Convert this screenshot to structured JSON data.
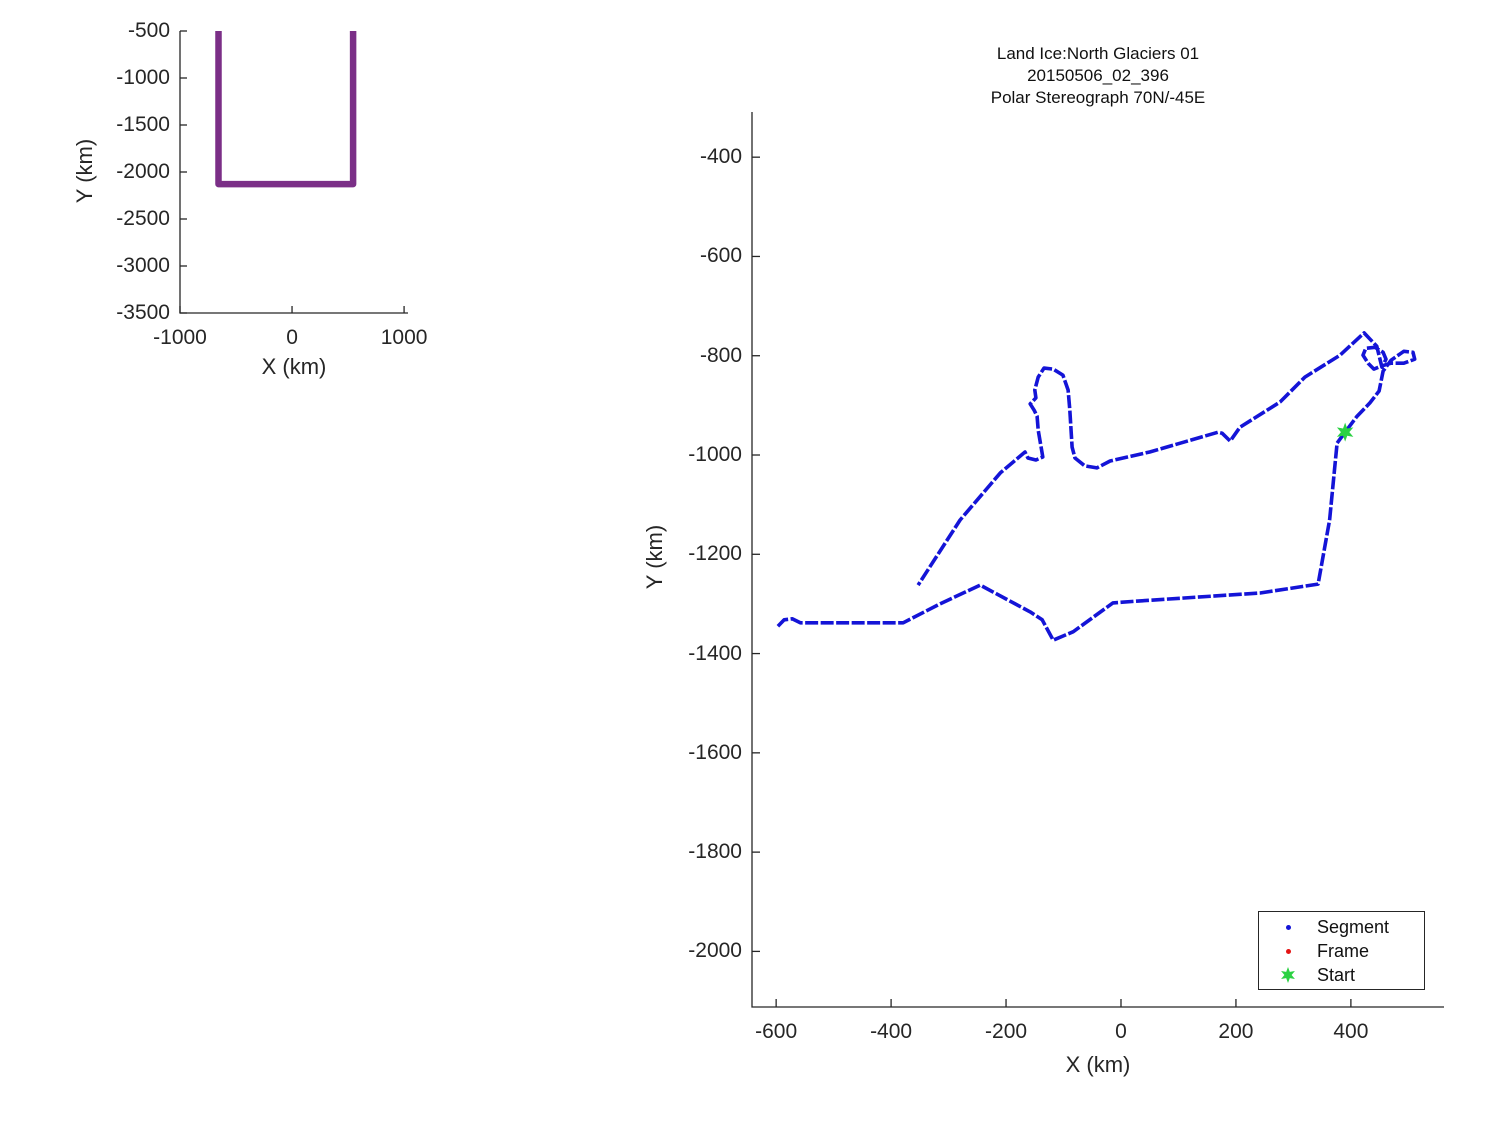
{
  "figure": {
    "background": "#ffffff"
  },
  "colors": {
    "axis": "#262626",
    "overview_track": "#7b2f87",
    "segment_blue": "#1414d7",
    "frame_red": "#e41414",
    "start_green": "#2bd143"
  },
  "chart_data": [
    {
      "name": "overview",
      "type": "line",
      "title": "",
      "xlabel": "X (km)",
      "ylabel": "Y (km)",
      "xlim": [
        -1000,
        1035
      ],
      "ylim": [
        -3500,
        -500
      ],
      "xticks": [
        -1000,
        0,
        1000
      ],
      "yticks": [
        -500,
        -1000,
        -1500,
        -2000,
        -2500,
        -3000,
        -3500
      ],
      "grid": false,
      "track_color": "#7b2f87",
      "track": [
        [
          -656,
          -500
        ],
        [
          -656,
          -2129
        ],
        [
          545,
          -2129
        ],
        [
          545,
          -500
        ]
      ]
    },
    {
      "name": "detail",
      "type": "line",
      "title_lines": [
        "Land Ice:North Glaciers 01",
        "20150506_02_396",
        "Polar Stereograph 70N/-45E"
      ],
      "xlabel": "X (km)",
      "ylabel": "Y (km)",
      "xlim": [
        -642,
        562
      ],
      "ylim": [
        -2112,
        -309
      ],
      "xticks": [
        -600,
        -400,
        -200,
        0,
        200,
        400
      ],
      "yticks": [
        -400,
        -600,
        -800,
        -1000,
        -1200,
        -1400,
        -1600,
        -1800,
        -2000
      ],
      "grid": false,
      "segment_color": "#1414d7",
      "frame_color": "#e41414",
      "start_color": "#2bd143",
      "start": {
        "x": 390,
        "y": -954
      },
      "legend_position": "southeast",
      "legend": {
        "items": [
          {
            "label": "Segment",
            "marker": "dot",
            "color": "#1414d7"
          },
          {
            "label": "Frame",
            "marker": "dot",
            "color": "#e41414"
          },
          {
            "label": "Start",
            "marker": "star",
            "color": "#2bd143"
          }
        ]
      },
      "track": [
        [
          -597,
          -1345
        ],
        [
          -586,
          -1332
        ],
        [
          -572,
          -1330
        ],
        [
          -558,
          -1338
        ],
        [
          -379,
          -1338
        ],
        [
          -315,
          -1300
        ],
        [
          -245,
          -1262
        ],
        [
          -158,
          -1316
        ],
        [
          -137,
          -1332
        ],
        [
          -118,
          -1373
        ],
        [
          -83,
          -1356
        ],
        [
          -14,
          -1298
        ],
        [
          33,
          -1294
        ],
        [
          242,
          -1278
        ],
        [
          343,
          -1260
        ],
        [
          363,
          -1131
        ],
        [
          376,
          -976
        ],
        [
          390,
          -954
        ],
        [
          410,
          -923
        ],
        [
          433,
          -895
        ],
        [
          449,
          -871
        ],
        [
          456,
          -831
        ],
        [
          470,
          -809
        ],
        [
          492,
          -791
        ],
        [
          508,
          -793
        ],
        [
          511,
          -807
        ],
        [
          492,
          -815
        ],
        [
          470,
          -815
        ],
        [
          452,
          -821
        ],
        [
          440,
          -827
        ],
        [
          430,
          -815
        ],
        [
          421,
          -799
        ],
        [
          426,
          -785
        ],
        [
          442,
          -783
        ],
        [
          456,
          -793
        ],
        [
          461,
          -807
        ],
        [
          454,
          -823
        ],
        [
          445,
          -781
        ],
        [
          423,
          -754
        ],
        [
          381,
          -799
        ],
        [
          320,
          -843
        ],
        [
          277,
          -893
        ],
        [
          207,
          -944
        ],
        [
          190,
          -972
        ],
        [
          176,
          -956
        ],
        [
          169,
          -954
        ],
        [
          50,
          -994
        ],
        [
          -19,
          -1012
        ],
        [
          -42,
          -1026
        ],
        [
          -63,
          -1022
        ],
        [
          -80,
          -1006
        ],
        [
          -85,
          -984
        ],
        [
          -89,
          -909
        ],
        [
          -92,
          -869
        ],
        [
          -101,
          -839
        ],
        [
          -118,
          -827
        ],
        [
          -134,
          -825
        ],
        [
          -144,
          -843
        ],
        [
          -150,
          -869
        ],
        [
          -148,
          -885
        ],
        [
          -158,
          -897
        ],
        [
          -151,
          -910
        ],
        [
          -146,
          -922
        ],
        [
          -144,
          -950
        ],
        [
          -139,
          -984
        ],
        [
          -136,
          -1004
        ],
        [
          -148,
          -1010
        ],
        [
          -162,
          -1006
        ],
        [
          -167,
          -994
        ],
        [
          -210,
          -1036
        ],
        [
          -280,
          -1131
        ],
        [
          -353,
          -1262
        ]
      ]
    }
  ]
}
